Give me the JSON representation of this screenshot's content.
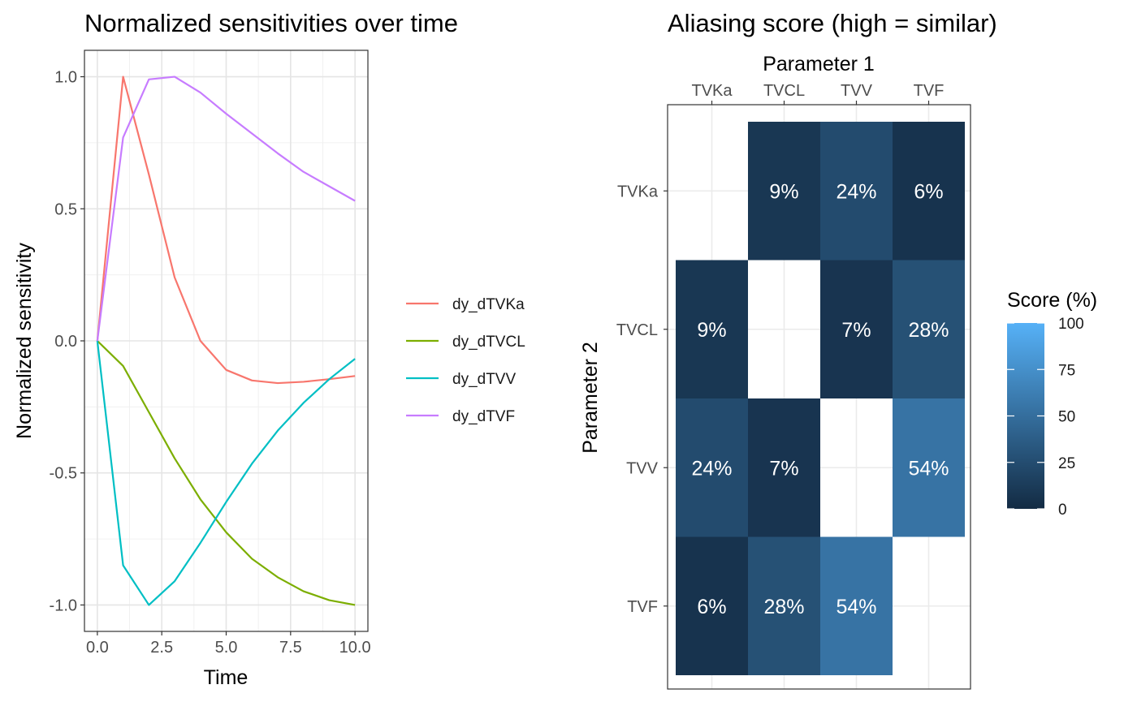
{
  "chart_data": [
    {
      "type": "line",
      "title": "Normalized sensitivities over time",
      "xlabel": "Time",
      "ylabel": "Normalized sensitivity",
      "xlim": [
        -0.5,
        10.5
      ],
      "ylim": [
        -1.1,
        1.1
      ],
      "x_ticks": [
        "0.0",
        "2.5",
        "5.0",
        "7.5",
        "10.0"
      ],
      "y_ticks": [
        "1.0",
        "0.5",
        "0.0",
        "-0.5",
        "-1.0"
      ],
      "grid": true,
      "legend_position": "right",
      "x": [
        0,
        1,
        2,
        3,
        4,
        5,
        6,
        7,
        8,
        9,
        10
      ],
      "series": [
        {
          "name": "dy_dTVKa",
          "color": "#F8766D",
          "values": [
            0,
            1.0,
            0.63,
            0.24,
            0.0,
            -0.11,
            -0.15,
            -0.16,
            -0.155,
            -0.145,
            -0.133
          ]
        },
        {
          "name": "dy_dTVCL",
          "color": "#7CAE00",
          "values": [
            0,
            -0.095,
            -0.27,
            -0.445,
            -0.6,
            -0.725,
            -0.825,
            -0.895,
            -0.948,
            -0.982,
            -1.0
          ]
        },
        {
          "name": "dy_dTVV",
          "color": "#00BFC4",
          "values": [
            0,
            -0.85,
            -1.0,
            -0.91,
            -0.765,
            -0.61,
            -0.465,
            -0.34,
            -0.235,
            -0.145,
            -0.068
          ]
        },
        {
          "name": "dy_dTVF",
          "color": "#C77CFF",
          "values": [
            0,
            0.77,
            0.99,
            1.0,
            0.94,
            0.86,
            0.785,
            0.71,
            0.64,
            0.585,
            0.53
          ]
        }
      ]
    },
    {
      "type": "heatmap",
      "title": "Aliasing score (high = similar)",
      "xlabel": "Parameter 1",
      "ylabel": "Parameter 2",
      "x_categories": [
        "TVKa",
        "TVCL",
        "TVV",
        "TVF"
      ],
      "y_categories": [
        "TVKa",
        "TVCL",
        "TVV",
        "TVF"
      ],
      "values": [
        [
          null,
          9,
          24,
          6
        ],
        [
          9,
          null,
          7,
          28
        ],
        [
          24,
          7,
          null,
          54
        ],
        [
          6,
          28,
          54,
          null
        ]
      ],
      "labels": [
        [
          "",
          "9%",
          "24%",
          "6%"
        ],
        [
          "9%",
          "",
          "7%",
          "28%"
        ],
        [
          "24%",
          "7%",
          "",
          "54%"
        ],
        [
          "6%",
          "28%",
          "54%",
          ""
        ]
      ],
      "colorbar": {
        "title": "Score (%)",
        "range": [
          0,
          100
        ],
        "ticks": [
          "100",
          "75",
          "50",
          "25",
          "0"
        ],
        "low_color": "#132B43",
        "high_color": "#56B1F7"
      }
    }
  ]
}
